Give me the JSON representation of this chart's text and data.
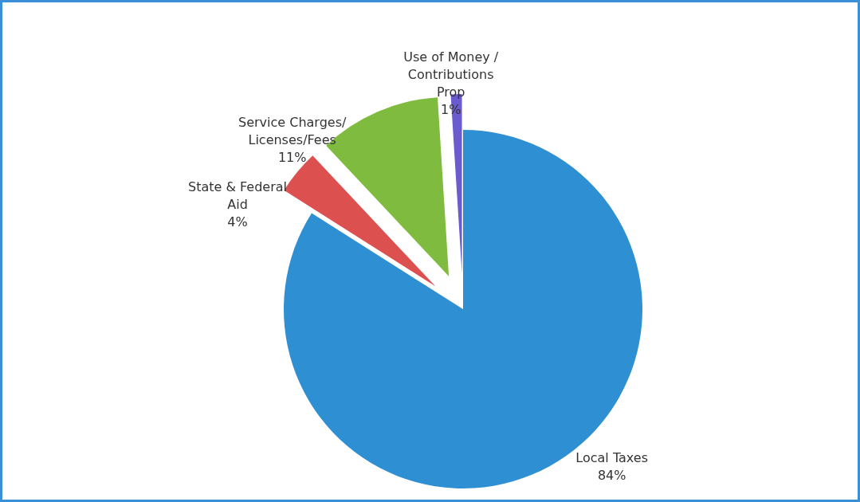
{
  "chart_data": {
    "type": "pie",
    "categories": [
      "Local Taxes",
      "State & Federal\nAid",
      "Service Charges/\nLicenses/Fees",
      "Use of Money /\nContributions\nProp"
    ],
    "values": [
      84,
      4,
      11,
      1
    ],
    "value_labels": [
      "84%",
      "4%",
      "11%",
      "1%"
    ],
    "colors": [
      "#2f8fd3",
      "#dc5050",
      "#7fbb3e",
      "#6a5ccf"
    ],
    "legend": false
  }
}
